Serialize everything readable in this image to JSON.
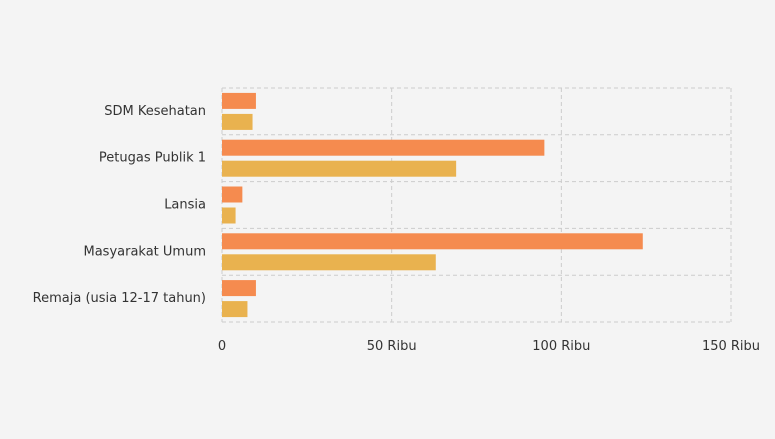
{
  "chart_data": {
    "type": "bar",
    "orientation": "horizontal",
    "categories": [
      "SDM Kesehatan",
      "Petugas Publik 1",
      "Lansia",
      "Masyarakat Umum",
      "Remaja (usia 12-17 tahun)"
    ],
    "series": [
      {
        "color": "#f58b4f",
        "values": [
          10000,
          95000,
          6000,
          124000,
          10000
        ]
      },
      {
        "color": "#e9b24f",
        "values": [
          9000,
          69000,
          4000,
          63000,
          7500
        ]
      }
    ],
    "xlim": [
      0,
      150000
    ],
    "x_ticks": [
      {
        "value": 0,
        "label": "0"
      },
      {
        "value": 50000,
        "label": "50 Ribu"
      },
      {
        "value": 100000,
        "label": "100 Ribu"
      },
      {
        "value": 150000,
        "label": "150 Ribu"
      }
    ],
    "grid": true,
    "grid_style": "dashed"
  }
}
